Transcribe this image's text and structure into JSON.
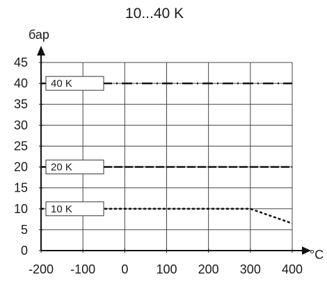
{
  "chart_data": {
    "type": "line",
    "title": "10...40 K",
    "xlabel": "°C",
    "ylabel": "бар",
    "xlim": [
      -200,
      400
    ],
    "ylim": [
      0,
      45
    ],
    "x_ticks": [
      -200,
      -100,
      0,
      100,
      200,
      300,
      400
    ],
    "y_ticks": [
      0,
      5,
      10,
      15,
      20,
      25,
      30,
      35,
      40,
      45
    ],
    "x_tick_labels": [
      "-200",
      "-100",
      "0",
      "100",
      "200",
      "300",
      "400"
    ],
    "y_tick_labels": [
      "0",
      "5",
      "10",
      "15",
      "20",
      "25",
      "30",
      "35",
      "40",
      "45"
    ],
    "grid": true,
    "series": [
      {
        "name": "40 K",
        "style": "dash-dot",
        "x": [
          -200,
          400
        ],
        "y": [
          40,
          40
        ]
      },
      {
        "name": "20 K",
        "style": "dashed",
        "x": [
          -200,
          400
        ],
        "y": [
          20,
          20
        ]
      },
      {
        "name": "10 K",
        "style": "dotted",
        "x": [
          -200,
          300,
          400
        ],
        "y": [
          10,
          10,
          6.5
        ]
      }
    ],
    "annotations": [
      "40 K",
      "20 K",
      "10 K"
    ]
  }
}
